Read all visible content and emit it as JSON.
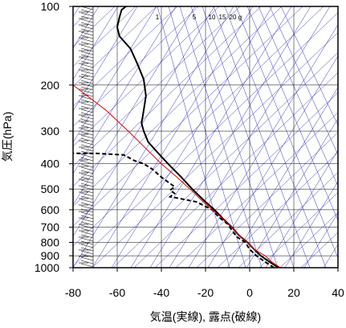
{
  "chart_data": {
    "type": "line",
    "title": "",
    "xlabel": "気温(実線), 露点(破線)",
    "ylabel": "気圧(hPa)",
    "xlim": [
      -80,
      40
    ],
    "ylim": [
      1000,
      100
    ],
    "y_scale": "log",
    "x_ticks": [
      -80,
      -60,
      -40,
      -20,
      0,
      20,
      40
    ],
    "x_tick_labels": [
      "-80",
      "-60",
      "-40",
      "-20",
      "0",
      "20",
      "40"
    ],
    "y_ticks": [
      100,
      200,
      300,
      400,
      500,
      600,
      700,
      800,
      900,
      1000
    ],
    "y_tick_labels": [
      "100",
      "200",
      "300",
      "400",
      "500",
      "600",
      "700",
      "800",
      "900",
      "1000"
    ],
    "grid": true,
    "mixing_ratio_labels": [
      "1",
      "5",
      "10",
      "15",
      "20",
      "g"
    ],
    "colors": {
      "temperature": "#000000",
      "dewpoint": "#000000",
      "parcel": "#e00000",
      "background_lines": "#3030c0",
      "grid": "#000000"
    },
    "series": [
      {
        "key": "temperature",
        "style": "solid",
        "points": [
          {
            "x": 13,
            "y": 1000
          },
          {
            "x": 9,
            "y": 950
          },
          {
            "x": 5,
            "y": 900
          },
          {
            "x": 2,
            "y": 850
          },
          {
            "x": -1,
            "y": 800
          },
          {
            "x": -5,
            "y": 750
          },
          {
            "x": -8,
            "y": 700
          },
          {
            "x": -12,
            "y": 650
          },
          {
            "x": -16,
            "y": 600
          },
          {
            "x": -21,
            "y": 550
          },
          {
            "x": -26,
            "y": 500
          },
          {
            "x": -31,
            "y": 450
          },
          {
            "x": -37,
            "y": 400
          },
          {
            "x": -42,
            "y": 360
          },
          {
            "x": -46,
            "y": 330
          },
          {
            "x": -48,
            "y": 300
          },
          {
            "x": -49,
            "y": 280
          },
          {
            "x": -48,
            "y": 250
          },
          {
            "x": -47,
            "y": 220
          },
          {
            "x": -48,
            "y": 190
          },
          {
            "x": -51,
            "y": 165
          },
          {
            "x": -54,
            "y": 145
          },
          {
            "x": -59,
            "y": 130
          },
          {
            "x": -60,
            "y": 120
          },
          {
            "x": -59,
            "y": 110
          },
          {
            "x": -58,
            "y": 103
          },
          {
            "x": -56,
            "y": 100
          }
        ]
      },
      {
        "key": "dewpoint",
        "style": "dashed",
        "points": [
          {
            "x": 11,
            "y": 1000
          },
          {
            "x": 7,
            "y": 950
          },
          {
            "x": 3,
            "y": 900
          },
          {
            "x": 0,
            "y": 850
          },
          {
            "x": -2,
            "y": 800
          },
          {
            "x": -6,
            "y": 760
          },
          {
            "x": -8,
            "y": 720
          },
          {
            "x": -10,
            "y": 680
          },
          {
            "x": -14,
            "y": 640
          },
          {
            "x": -17,
            "y": 600
          },
          {
            "x": -24,
            "y": 560
          },
          {
            "x": -31,
            "y": 545
          },
          {
            "x": -36,
            "y": 535
          },
          {
            "x": -34,
            "y": 520
          },
          {
            "x": -36,
            "y": 505
          },
          {
            "x": -34,
            "y": 490
          },
          {
            "x": -37,
            "y": 470
          },
          {
            "x": -40,
            "y": 450
          },
          {
            "x": -44,
            "y": 420
          },
          {
            "x": -48,
            "y": 400
          },
          {
            "x": -52,
            "y": 390
          },
          {
            "x": -57,
            "y": 370
          },
          {
            "x": -70,
            "y": 365
          },
          {
            "x": -80,
            "y": 365
          }
        ]
      },
      {
        "key": "parcel",
        "style": "solid",
        "points": [
          {
            "x": 14,
            "y": 1000
          },
          {
            "x": 10,
            "y": 950
          },
          {
            "x": 7,
            "y": 900
          },
          {
            "x": 2,
            "y": 850
          },
          {
            "x": -1,
            "y": 800
          },
          {
            "x": -5,
            "y": 750
          },
          {
            "x": -8,
            "y": 700
          },
          {
            "x": -12,
            "y": 650
          },
          {
            "x": -17,
            "y": 600
          },
          {
            "x": -22,
            "y": 550
          },
          {
            "x": -27,
            "y": 500
          },
          {
            "x": -33,
            "y": 450
          },
          {
            "x": -40,
            "y": 400
          },
          {
            "x": -47,
            "y": 350
          },
          {
            "x": -55,
            "y": 300
          },
          {
            "x": -65,
            "y": 250
          },
          {
            "x": -80,
            "y": 200
          }
        ]
      }
    ]
  }
}
